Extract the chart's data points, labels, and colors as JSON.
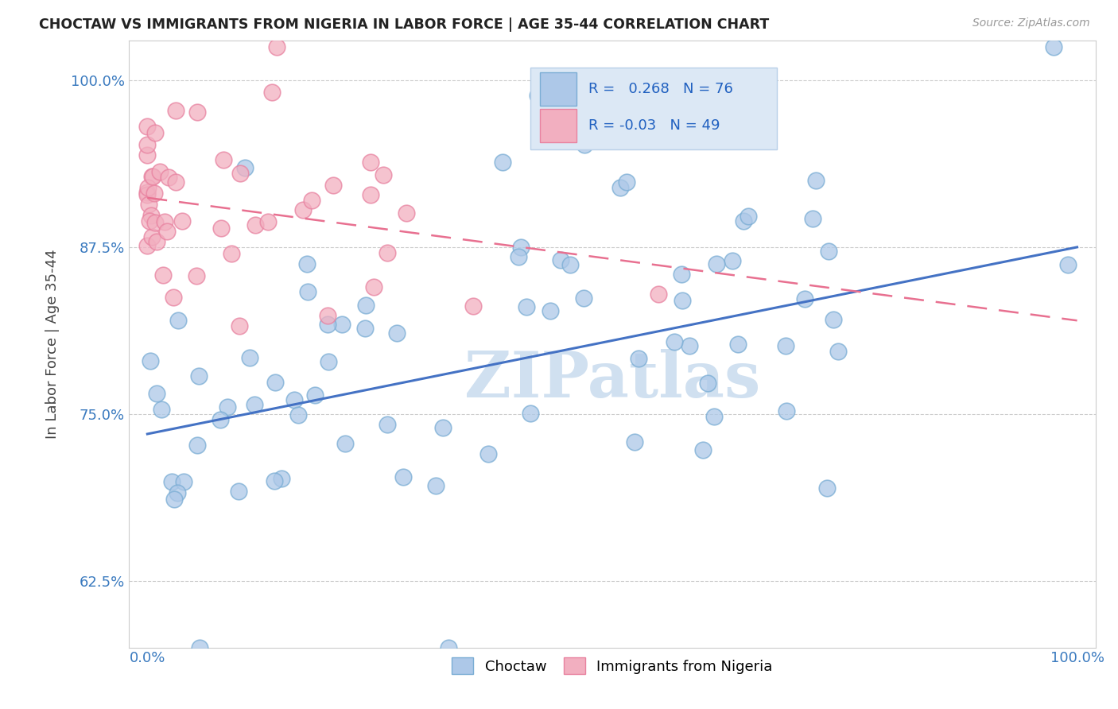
{
  "title": "CHOCTAW VS IMMIGRANTS FROM NIGERIA IN LABOR FORCE | AGE 35-44 CORRELATION CHART",
  "source": "Source: ZipAtlas.com",
  "ylabel": "In Labor Force | Age 35-44",
  "xlim": [
    -0.02,
    1.02
  ],
  "ylim": [
    0.575,
    1.03
  ],
  "yticks": [
    0.625,
    0.75,
    0.875,
    1.0
  ],
  "ytick_labels": [
    "62.5%",
    "75.0%",
    "87.5%",
    "100.0%"
  ],
  "xticks": [
    0.0,
    1.0
  ],
  "xtick_labels": [
    "0.0%",
    "100.0%"
  ],
  "choctaw_R": 0.268,
  "choctaw_N": 76,
  "nigeria_R": -0.03,
  "nigeria_N": 49,
  "choctaw_color": "#adc8e8",
  "nigeria_color": "#f2afc0",
  "choctaw_edge_color": "#7aadd4",
  "nigeria_edge_color": "#e882a0",
  "choctaw_line_color": "#4472c4",
  "nigeria_line_color": "#e87090",
  "watermark_color": "#d0e0f0",
  "watermark": "ZIPatlas",
  "choctaw_line_y0": 0.735,
  "choctaw_line_y1": 0.875,
  "nigeria_line_y0": 0.912,
  "nigeria_line_y1": 0.82
}
